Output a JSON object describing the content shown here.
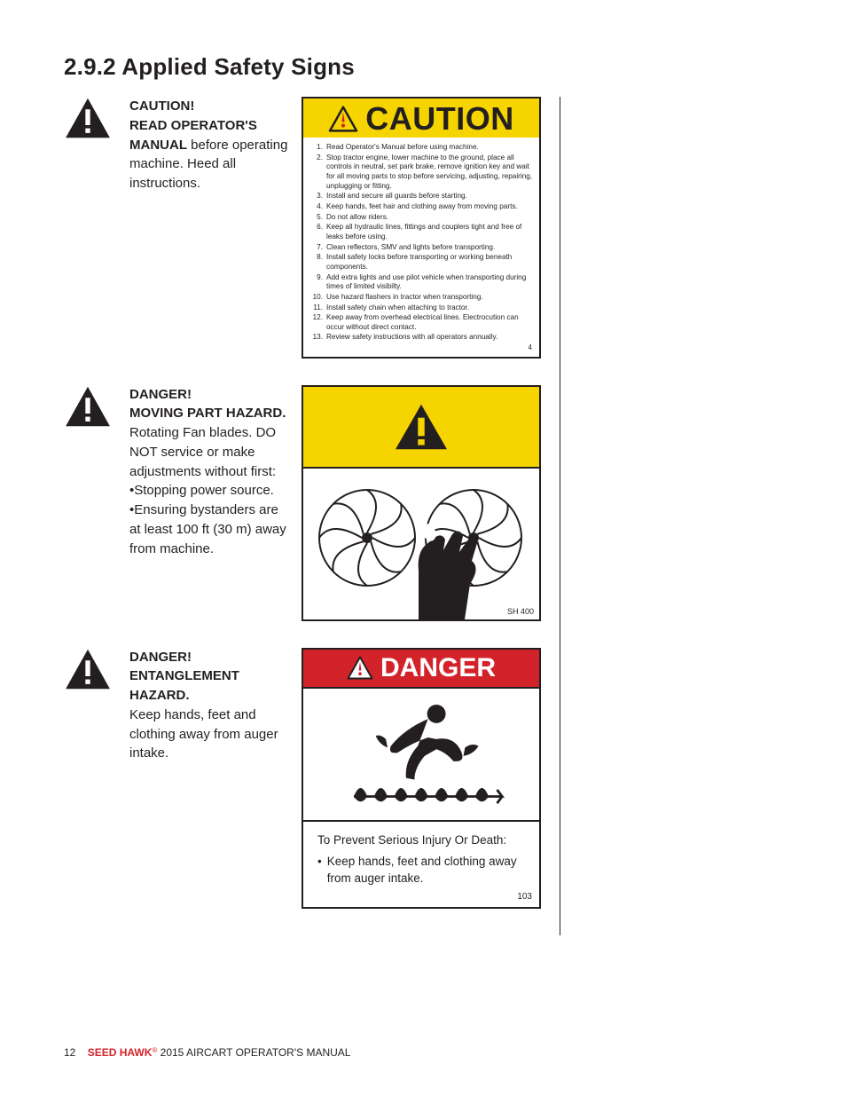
{
  "section_title": "2.9.2 Applied Safety Signs",
  "colors": {
    "text": "#231f20",
    "caution_bg": "#f6d400",
    "danger_bg": "#d2232a",
    "white": "#ffffff",
    "brand_red": "#d2232a"
  },
  "blocks": {
    "caution": {
      "heading_line1": "CAUTION!",
      "heading_line2": "READ OPERATOR'S MANUAL",
      "body_inline": " before operating machine. Heed all instructions.",
      "label_word": "CAUTION",
      "label_footer": "4",
      "items": [
        "Read Operator's Manual before using machine.",
        "Stop tractor engine, lower machine to the ground, place all controls in neutral, set park brake, remove ignition key and wait for all moving parts to stop before servicing, adjusting, repairing, unplugging or fitting.",
        "Install and secure all guards before starting.",
        "Keep hands, feet hair and clothing away from moving parts.",
        "Do not allow riders.",
        "Keep all hydraulic lines, fittings and couplers tight and free of leaks before using.",
        "Clean reflectors, SMV and lights before transporting.",
        "Install safety locks before transporting or working beneath components.",
        "Add extra lights and use pilot vehicle when transporting during times of limited visibilty.",
        "Use hazard flashers in tractor when transporting.",
        "Install safety chain when attaching to tractor.",
        "Keep away from overhead electrical lines. Electrocution can occur without direct contact.",
        "Review safety instructions with all operators annually."
      ]
    },
    "moving": {
      "heading_line1": "DANGER!",
      "heading_line2": "MOVING PART HAZARD.",
      "body_lines": [
        "Rotating Fan blades. DO NOT service or make adjustments without first:",
        "•Stopping power source.",
        "•Ensuring bystanders are at least 100 ft (30 m) away from machine."
      ],
      "label_code": "SH 400"
    },
    "entangle": {
      "heading_line1": "DANGER!",
      "heading_line2": "ENTANGLEMENT HAZARD.",
      "body": "Keep hands, feet and clothing away from auger intake.",
      "label_word": "DANGER",
      "label_text_heading": "To Prevent Serious Injury Or Death:",
      "label_bullet": "Keep hands, feet and clothing away from auger intake.",
      "label_code": "103"
    }
  },
  "footer": {
    "page": "12",
    "brand": "SEED HAWK",
    "rest": " 2015 AIRCART OPERATOR'S MANUAL"
  }
}
